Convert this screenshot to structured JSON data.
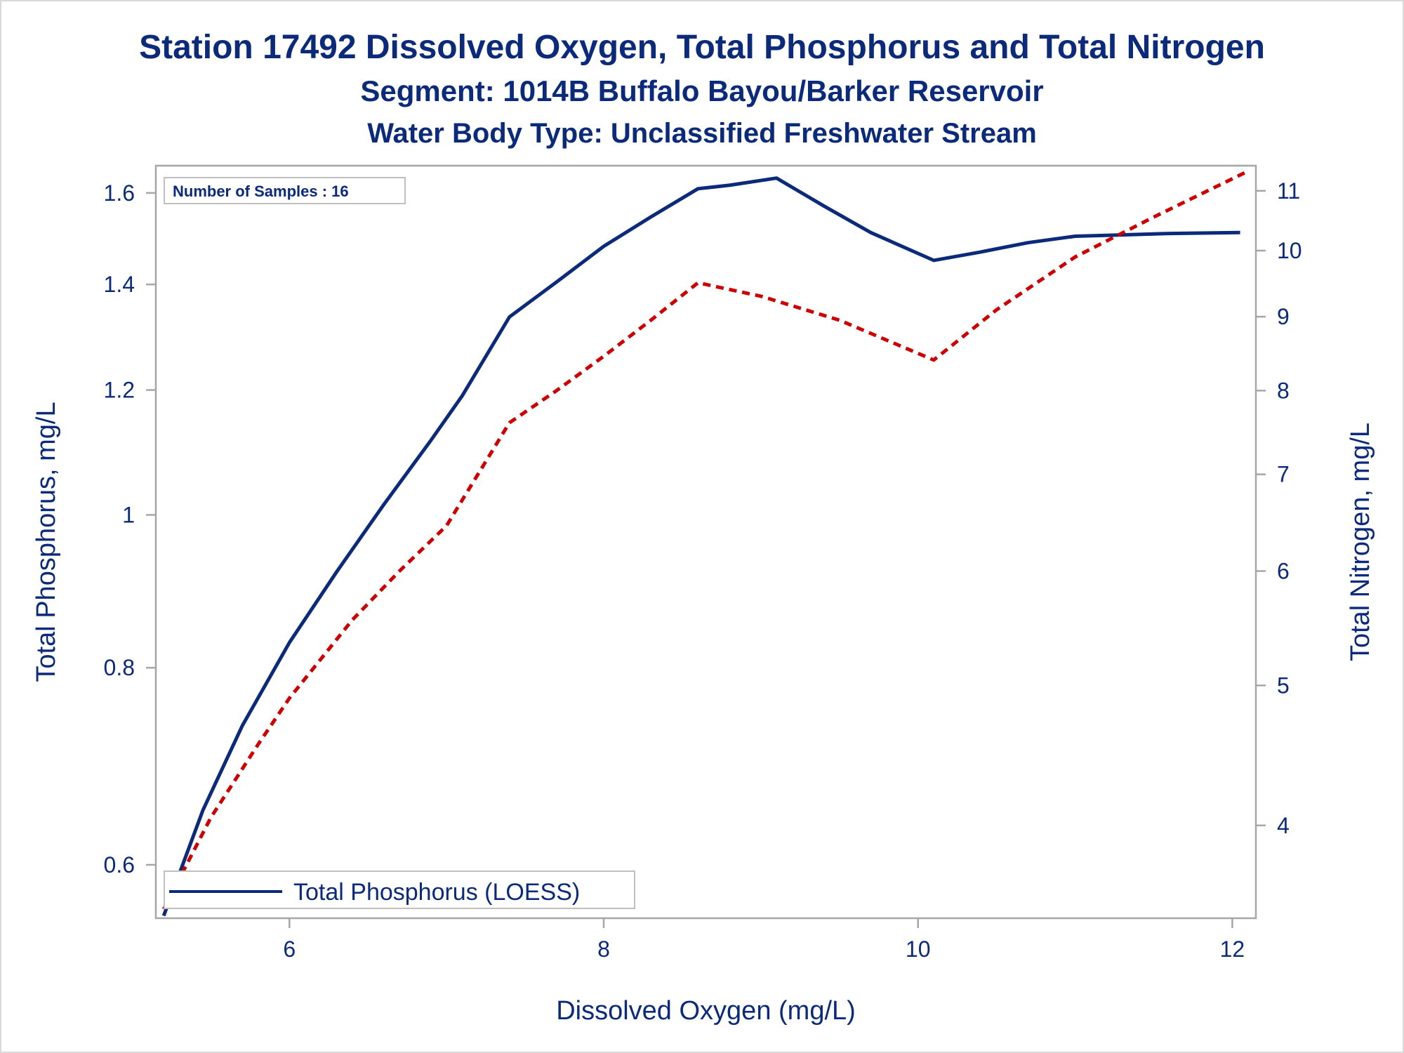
{
  "titles": {
    "line1": "Station 17492  Dissolved Oxygen, Total Phosphorus and Total Nitrogen",
    "line2": "Segment: 1014B  Buffalo Bayou/Barker Reservoir",
    "line3": "Water Body Type: Unclassified Freshwater Stream"
  },
  "inset": {
    "text": "Number of Samples : 16"
  },
  "legend": {
    "entries": [
      {
        "label": "Total Phosphorus (LOESS)",
        "style": "solid",
        "color": "#0b2a7a"
      }
    ],
    "placement": "bottom-left inside"
  },
  "colors": {
    "text": "#0b2a7a",
    "phosphorus": "#0b2a7a",
    "nitrogen": "#cc0000",
    "axis": "#a6a6a6"
  },
  "chart_data": {
    "type": "line",
    "xlabel": "Dissolved Oxygen (mg/L)",
    "ylabel": "Total Phosphorus, mg/L",
    "y2label": "Total Nitrogen, mg/L",
    "xlim": [
      5.15,
      12.15
    ],
    "ylim": [
      0.555,
      1.665
    ],
    "y2lim": [
      3.45,
      11.45
    ],
    "yscale": "log",
    "y2scale": "log",
    "x_ticks": [
      6,
      8,
      10,
      12
    ],
    "y_ticks": [
      0.6,
      0.8,
      1,
      1.2,
      1.4,
      1.6
    ],
    "y_tick_labels": [
      "0.6",
      "0.8",
      "1",
      "1.2",
      "1.4",
      "1.6"
    ],
    "y2_ticks": [
      4,
      5,
      6,
      7,
      8,
      9,
      10,
      11
    ],
    "grid": false,
    "series": [
      {
        "name": "Total Phosphorus (LOESS)",
        "axis": "left",
        "style": "solid",
        "color": "#0b2a7a",
        "x": [
          5.2,
          5.45,
          5.7,
          6.0,
          6.3,
          6.6,
          6.9,
          7.1,
          7.4,
          7.7,
          8.0,
          8.3,
          8.6,
          8.8,
          9.1,
          9.4,
          9.7,
          10.1,
          10.4,
          10.7,
          11.0,
          11.3,
          11.6,
          12.05
        ],
        "y": [
          0.557,
          0.65,
          0.735,
          0.83,
          0.92,
          1.015,
          1.115,
          1.19,
          1.335,
          1.405,
          1.48,
          1.545,
          1.61,
          1.618,
          1.635,
          1.57,
          1.51,
          1.45,
          1.468,
          1.488,
          1.502,
          1.505,
          1.508,
          1.51
        ]
      },
      {
        "name": "",
        "axis": "right",
        "style": "dashed",
        "color": "#cc0000",
        "x": [
          5.2,
          5.5,
          5.8,
          6.0,
          6.4,
          6.7,
          7.0,
          7.4,
          7.7,
          8.0,
          8.3,
          8.6,
          9.0,
          9.5,
          10.1,
          10.5,
          11.0,
          11.5,
          12.1
        ],
        "y": [
          3.5,
          4.05,
          4.55,
          4.9,
          5.55,
          6.0,
          6.45,
          7.6,
          8.0,
          8.45,
          8.95,
          9.5,
          9.3,
          8.95,
          8.4,
          9.1,
          9.9,
          10.55,
          11.35
        ]
      }
    ]
  }
}
